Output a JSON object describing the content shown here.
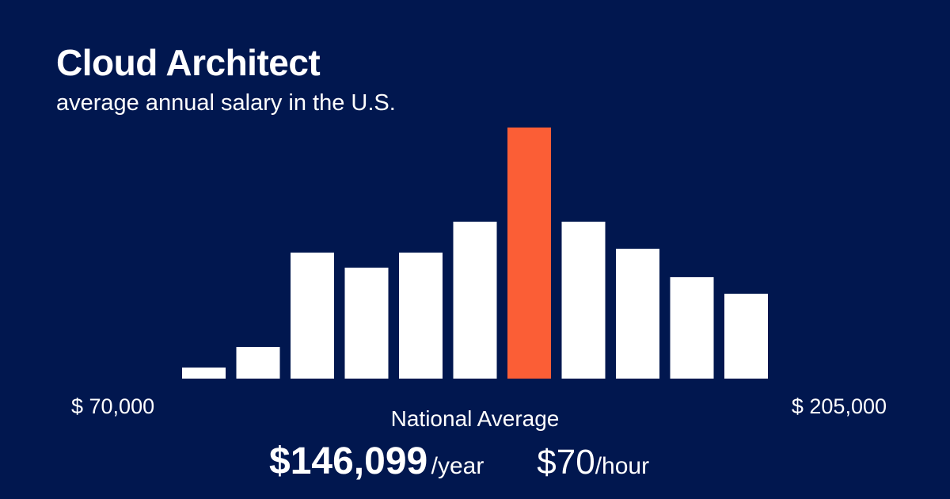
{
  "header": {
    "title": "Cloud Architect",
    "subtitle": "average annual salary in the U.S."
  },
  "chart_data": {
    "type": "bar",
    "xlim_labels": {
      "min": "$ 70,000",
      "max": "$ 205,000"
    },
    "values": [
      4.4,
      12.6,
      50.2,
      44.2,
      50.2,
      62.5,
      100,
      62.5,
      51.7,
      40.4,
      33.8
    ],
    "highlight_index": 6,
    "colors": {
      "bar": "#ffffff",
      "highlight": "#fb5e36",
      "background": "#01174f"
    }
  },
  "summary": {
    "label": "National Average",
    "annual": "$146,099",
    "annual_unit": "/year",
    "hourly": "$70",
    "hourly_unit": "/hour"
  }
}
